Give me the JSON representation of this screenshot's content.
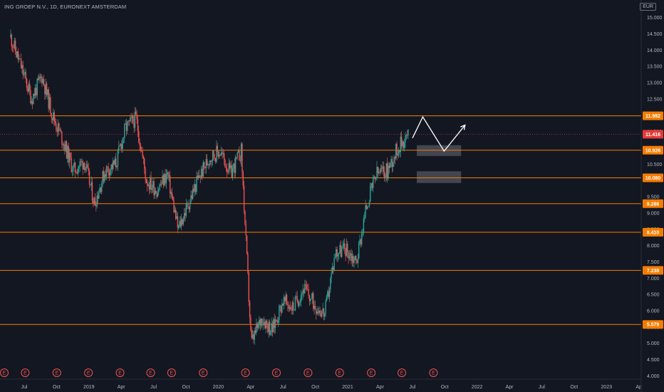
{
  "header": {
    "symbol_title": "ING GROEP N.V., 1D, EURONEXT AMSTERDAM",
    "currency": "EUR"
  },
  "colors": {
    "background": "#131722",
    "up": "#26a69a",
    "down": "#ef5350",
    "level_line": "#f57c00",
    "level_label_bg": "#f57c00",
    "current_price_bg": "#e53935",
    "zone_fill": "#5d606b",
    "projection": "#ffffff",
    "axis_text": "#b2b5be"
  },
  "chart_data": {
    "type": "candlestick",
    "symbol": "ING GROEP N.V.",
    "interval": "1D",
    "exchange": "EURONEXT AMSTERDAM",
    "currency": "EUR",
    "ylim": [
      3.9,
      15.45
    ],
    "y_ticks": [
      "4.000",
      "4.500",
      "5.000",
      "5.500",
      "6.000",
      "6.500",
      "7.000",
      "7.500",
      "8.000",
      "8.500",
      "9.000",
      "9.500",
      "10.500",
      "11.000",
      "11.500",
      "12.500",
      "13.000",
      "13.500",
      "14.000",
      "14.500",
      "15.000"
    ],
    "x_ticks": [
      "Jul",
      "Oct",
      "2019",
      "Apr",
      "Jul",
      "Oct",
      "2020",
      "Apr",
      "Jul",
      "Oct",
      "2021",
      "Apr",
      "Jul",
      "Oct",
      "2022",
      "Apr",
      "Jul",
      "Oct",
      "2023",
      "Ap"
    ],
    "price_path": [
      {
        "date": "2018-04",
        "close": 14.4
      },
      {
        "date": "2018-05",
        "close": 13.5
      },
      {
        "date": "2018-06",
        "close": 12.5
      },
      {
        "date": "2018-07",
        "close": 13.2
      },
      {
        "date": "2018-08",
        "close": 12.0
      },
      {
        "date": "2018-09",
        "close": 11.2
      },
      {
        "date": "2018-10",
        "close": 10.3
      },
      {
        "date": "2018-11",
        "close": 10.6
      },
      {
        "date": "2018-12",
        "close": 9.3
      },
      {
        "date": "2019-01",
        "close": 10.3
      },
      {
        "date": "2019-02",
        "close": 10.5
      },
      {
        "date": "2019-03",
        "close": 11.6
      },
      {
        "date": "2019-04",
        "close": 11.9
      },
      {
        "date": "2019-05",
        "close": 10.0
      },
      {
        "date": "2019-06",
        "close": 9.7
      },
      {
        "date": "2019-07",
        "close": 10.2
      },
      {
        "date": "2019-08",
        "close": 8.5
      },
      {
        "date": "2019-09",
        "close": 9.3
      },
      {
        "date": "2019-10",
        "close": 10.1
      },
      {
        "date": "2019-11",
        "close": 10.7
      },
      {
        "date": "2019-12",
        "close": 10.9
      },
      {
        "date": "2020-01",
        "close": 10.2
      },
      {
        "date": "2020-02",
        "close": 10.9
      },
      {
        "date": "2020-03",
        "close": 5.0
      },
      {
        "date": "2020-04",
        "close": 5.8
      },
      {
        "date": "2020-05",
        "close": 5.4
      },
      {
        "date": "2020-06",
        "close": 6.3
      },
      {
        "date": "2020-07",
        "close": 6.1
      },
      {
        "date": "2020-08",
        "close": 6.7
      },
      {
        "date": "2020-09",
        "close": 6.2
      },
      {
        "date": "2020-10",
        "close": 5.9
      },
      {
        "date": "2020-11",
        "close": 7.8
      },
      {
        "date": "2020-12",
        "close": 7.9
      },
      {
        "date": "2021-01",
        "close": 7.5
      },
      {
        "date": "2021-02",
        "close": 9.3
      },
      {
        "date": "2021-03",
        "close": 10.2
      },
      {
        "date": "2021-04",
        "close": 10.3
      },
      {
        "date": "2021-05",
        "close": 11.0
      },
      {
        "date": "2021-06",
        "close": 11.416
      }
    ],
    "levels": [
      {
        "price": 11.982,
        "label": "11.982"
      },
      {
        "price": 10.926,
        "label": "10.926"
      },
      {
        "price": 10.08,
        "label": "10.080"
      },
      {
        "price": 9.286,
        "label": "9.286"
      },
      {
        "price": 8.41,
        "label": "8.410"
      },
      {
        "price": 7.238,
        "label": "7.238"
      },
      {
        "price": 5.579,
        "label": "5.579"
      }
    ],
    "current_price": {
      "price": 11.416,
      "label": "11.416"
    },
    "zones": [
      {
        "top": 11.08,
        "bottom": 10.75,
        "from": "2021-06",
        "to": "2021-12"
      },
      {
        "top": 10.28,
        "bottom": 9.92,
        "from": "2021-06",
        "to": "2021-12"
      }
    ],
    "projection_path": [
      {
        "date": "2021-06",
        "price": 11.3
      },
      {
        "date": "2021-07",
        "price": 11.95
      },
      {
        "date": "2021-09",
        "price": 10.9
      },
      {
        "date": "2021-11",
        "price": 11.7
      }
    ],
    "earnings_markers": [
      {
        "date": "2018-03",
        "label": "E"
      },
      {
        "date": "2018-05",
        "label": "E"
      },
      {
        "date": "2018-08",
        "label": "E"
      },
      {
        "date": "2018-11",
        "label": "E"
      },
      {
        "date": "2019-02",
        "label": "E"
      },
      {
        "date": "2019-05",
        "label": "E"
      },
      {
        "date": "2019-07",
        "label": "E"
      },
      {
        "date": "2019-10",
        "label": "E"
      },
      {
        "date": "2020-02",
        "label": "E"
      },
      {
        "date": "2020-05",
        "label": "E"
      },
      {
        "date": "2020-08",
        "label": "E"
      },
      {
        "date": "2020-11",
        "label": "E"
      },
      {
        "date": "2021-02",
        "label": "E"
      },
      {
        "date": "2021-05",
        "label": "E"
      },
      {
        "date": "2021-08",
        "label": "E"
      }
    ]
  }
}
